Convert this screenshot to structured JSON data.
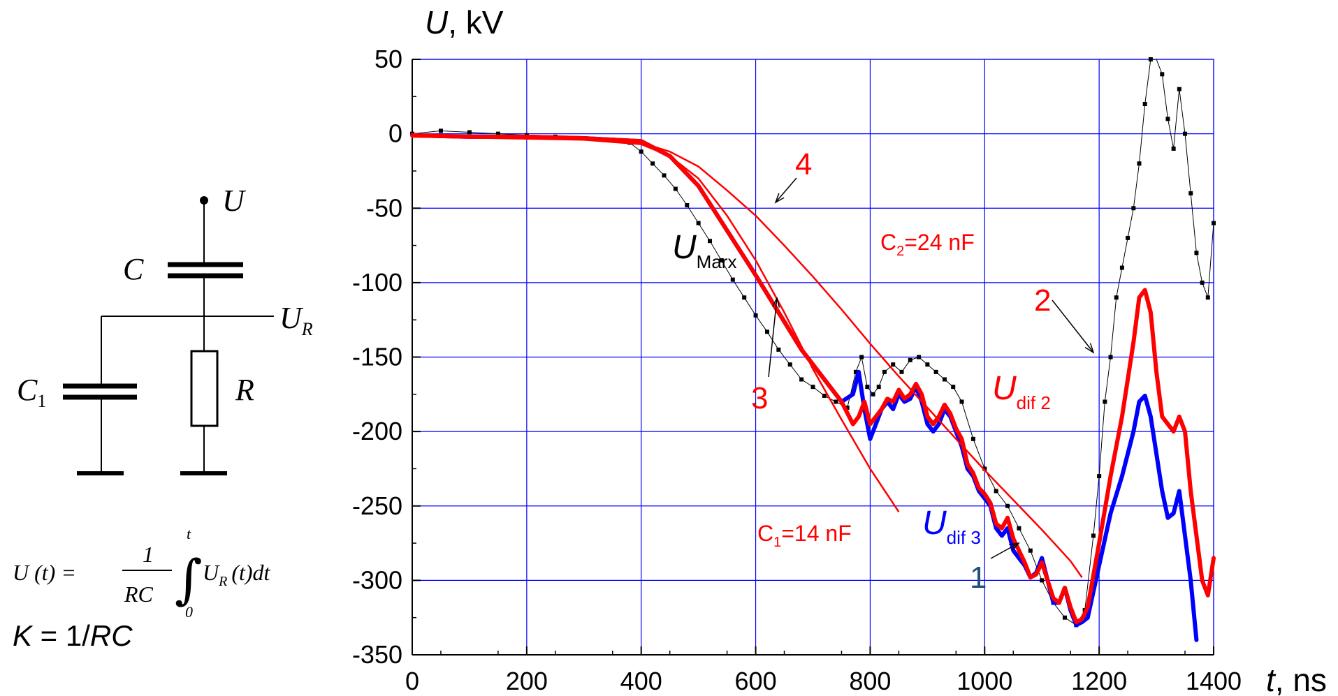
{
  "circuit": {
    "node_u": "U",
    "cap_c": "C",
    "node_ur_main": "U",
    "node_ur_sub": "R",
    "cap_c1_main": "C",
    "cap_c1_sub": "1",
    "resistor": "R"
  },
  "formula": {
    "lhs": "U (t) =",
    "num": "1",
    "den": "RC",
    "upper": "t",
    "lower": "0",
    "integrand_main": "U",
    "integrand_sub": "R",
    "integrand_tail": "(t)dt",
    "k_lhs": "K",
    "k_eq": " = 1/",
    "k_rhs": "RC"
  },
  "chart_data": {
    "type": "line",
    "title": "",
    "xlabel": "t, ns",
    "ylabel": "U, kV",
    "xlabel_main": "t",
    "xlabel_unit": ", ns",
    "ylabel_main": "U",
    "ylabel_unit": ", kV",
    "xlim": [
      0,
      1400
    ],
    "ylim": [
      -350,
      50
    ],
    "xticks": [
      0,
      200,
      400,
      600,
      800,
      1000,
      1200,
      1400
    ],
    "yticks": [
      50,
      0,
      -50,
      -100,
      -150,
      -200,
      -250,
      -300,
      -350
    ],
    "grid": true,
    "colors": {
      "black": "#000000",
      "red": "#ff0000",
      "blue": "#0000ff",
      "grid": "#0000ff",
      "navy": "#1f4e79"
    },
    "series": [
      {
        "color": "#000000",
        "style": "dots",
        "x": [
          0,
          50,
          100,
          150,
          200,
          250,
          300,
          350,
          380,
          400,
          420,
          440,
          460,
          480,
          500,
          520,
          540,
          560,
          580,
          600,
          620,
          640,
          660,
          680,
          700,
          720,
          740,
          760,
          775,
          785,
          795,
          805,
          815,
          825,
          840,
          855,
          870,
          885,
          900,
          915,
          930,
          945,
          960,
          980,
          1000,
          1020,
          1040,
          1060,
          1080,
          1100,
          1120,
          1140,
          1160,
          1175,
          1190,
          1200,
          1210,
          1220,
          1230,
          1240,
          1250,
          1260,
          1270,
          1280,
          1290,
          1300,
          1310,
          1320,
          1330,
          1340,
          1350,
          1360,
          1370,
          1380,
          1390,
          1400
        ],
        "y": [
          0,
          2,
          1,
          0,
          -1,
          -2,
          -3,
          -4,
          -6,
          -12,
          -20,
          -28,
          -37,
          -48,
          -60,
          -72,
          -85,
          -98,
          -110,
          -122,
          -133,
          -145,
          -155,
          -165,
          -170,
          -176,
          -180,
          -184,
          -160,
          -150,
          -170,
          -175,
          -170,
          -160,
          -155,
          -160,
          -152,
          -150,
          -155,
          -160,
          -165,
          -170,
          -180,
          -205,
          -225,
          -240,
          -250,
          -265,
          -280,
          -300,
          -315,
          -325,
          -330,
          -320,
          -270,
          -230,
          -180,
          -150,
          -110,
          -90,
          -70,
          -50,
          -20,
          20,
          50,
          80,
          40,
          10,
          -10,
          30,
          0,
          -40,
          -80,
          -100,
          -110,
          -60
        ]
      },
      {
        "color": "#0000ff",
        "style": "solid",
        "x": [
          0,
          100,
          200,
          300,
          400,
          450,
          500,
          550,
          600,
          640,
          680,
          720,
          750,
          770,
          780,
          790,
          800,
          810,
          820,
          830,
          840,
          850,
          860,
          870,
          880,
          890,
          900,
          910,
          920,
          930,
          940,
          950,
          960,
          970,
          980,
          990,
          1000,
          1010,
          1020,
          1030,
          1040,
          1050,
          1060,
          1070,
          1080,
          1090,
          1100,
          1110,
          1120,
          1130,
          1140,
          1150,
          1160,
          1170,
          1180,
          1200,
          1220,
          1240,
          1260,
          1270,
          1280,
          1290,
          1300,
          1310,
          1320,
          1330,
          1340,
          1350,
          1360,
          1370
        ],
        "y": [
          -1,
          -2,
          -2,
          -3,
          -5,
          -15,
          -35,
          -65,
          -95,
          -120,
          -145,
          -165,
          -180,
          -175,
          -160,
          -185,
          -205,
          -195,
          -185,
          -180,
          -185,
          -175,
          -180,
          -178,
          -170,
          -180,
          -195,
          -200,
          -195,
          -185,
          -190,
          -200,
          -210,
          -225,
          -230,
          -240,
          -245,
          -250,
          -265,
          -270,
          -265,
          -280,
          -285,
          -290,
          -298,
          -295,
          -285,
          -300,
          -315,
          -315,
          -305,
          -320,
          -330,
          -328,
          -325,
          -290,
          -255,
          -230,
          -200,
          -180,
          -176,
          -190,
          -215,
          -240,
          -258,
          -255,
          -240,
          -270,
          -300,
          -340
        ]
      },
      {
        "color": "#ff0000",
        "style": "solid",
        "x": [
          0,
          100,
          200,
          300,
          400,
          450,
          500,
          550,
          600,
          640,
          680,
          720,
          750,
          770,
          780,
          790,
          800,
          810,
          820,
          830,
          840,
          850,
          860,
          870,
          880,
          890,
          900,
          910,
          920,
          930,
          940,
          950,
          960,
          970,
          980,
          990,
          1000,
          1010,
          1020,
          1030,
          1040,
          1050,
          1060,
          1070,
          1080,
          1090,
          1100,
          1110,
          1120,
          1130,
          1140,
          1150,
          1160,
          1170,
          1180,
          1200,
          1220,
          1240,
          1260,
          1270,
          1280,
          1290,
          1300,
          1310,
          1320,
          1330,
          1340,
          1350,
          1360,
          1370,
          1380,
          1390,
          1400
        ],
        "y": [
          -1,
          -2,
          -2,
          -3,
          -5,
          -15,
          -35,
          -65,
          -95,
          -120,
          -145,
          -165,
          -180,
          -195,
          -190,
          -180,
          -195,
          -190,
          -185,
          -178,
          -180,
          -172,
          -178,
          -175,
          -168,
          -175,
          -190,
          -195,
          -190,
          -182,
          -188,
          -198,
          -205,
          -222,
          -228,
          -238,
          -242,
          -248,
          -262,
          -265,
          -258,
          -272,
          -280,
          -288,
          -298,
          -296,
          -288,
          -300,
          -312,
          -315,
          -305,
          -318,
          -328,
          -326,
          -318,
          -275,
          -230,
          -190,
          -140,
          -110,
          -105,
          -120,
          -160,
          -190,
          -195,
          -200,
          -190,
          -200,
          -240,
          -270,
          -300,
          -310,
          -285
        ]
      },
      {
        "color": "#ff0000",
        "style": "fit",
        "x": [
          0,
          300,
          400,
          450,
          500,
          550,
          600,
          650,
          700,
          750,
          800,
          850
        ],
        "y": [
          -2,
          -4,
          -7,
          -15,
          -30,
          -55,
          -85,
          -120,
          -158,
          -192,
          -225,
          -254
        ]
      },
      {
        "color": "#ff0000",
        "style": "fit",
        "x": [
          0,
          300,
          400,
          450,
          500,
          550,
          600,
          650,
          700,
          750,
          800,
          850,
          900,
          950,
          1000,
          1050,
          1100,
          1150,
          1170
        ],
        "y": [
          -2,
          -3,
          -6,
          -12,
          -22,
          -38,
          -55,
          -75,
          -96,
          -118,
          -141,
          -163,
          -184,
          -205,
          -226,
          -246,
          -266,
          -287,
          -298
        ]
      }
    ],
    "labels": {
      "c2": {
        "main": "C",
        "sub": "2",
        "rest": "=24 nF"
      },
      "c1": {
        "main": "C",
        "sub": "1",
        "rest": "=14 nF"
      },
      "umarx": {
        "main": "U",
        "sub": "Marx"
      },
      "udif2": {
        "main": "U",
        "sub": "dif 2"
      },
      "udif3": {
        "main": "U",
        "sub": "dif 3"
      },
      "n1": "1",
      "n2": "2",
      "n3": "3",
      "n4": "4"
    }
  }
}
